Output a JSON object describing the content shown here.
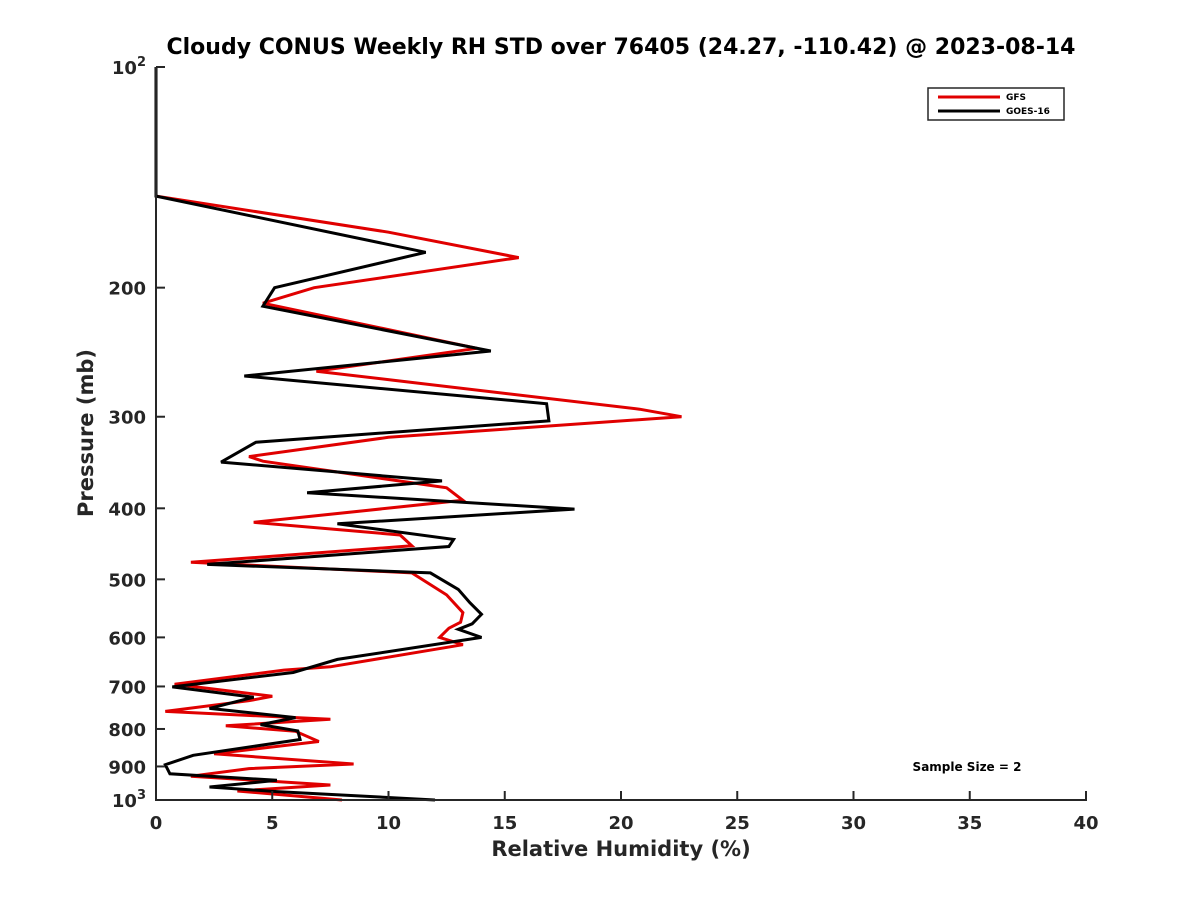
{
  "chart_data": {
    "type": "line",
    "title": "Cloudy CONUS Weekly RH STD over 76405 (24.27, -110.42) @ 2023-08-14",
    "xlabel": "Relative Humidity (%)",
    "ylabel": "Pressure (mb)",
    "xlim": [
      0,
      40
    ],
    "ylim": [
      1000,
      100
    ],
    "yscale": "log",
    "x_ticks": [
      0,
      5,
      10,
      15,
      20,
      25,
      30,
      35,
      40
    ],
    "x_tick_labels": [
      "0",
      "5",
      "10",
      "15",
      "20",
      "25",
      "30",
      "35",
      "40"
    ],
    "y_ticks": [
      {
        "value": 100,
        "base": "10",
        "exp": "2"
      },
      {
        "value": 200,
        "label": "200"
      },
      {
        "value": 300,
        "label": "300"
      },
      {
        "value": 400,
        "label": "400"
      },
      {
        "value": 500,
        "label": "500"
      },
      {
        "value": 600,
        "label": "600"
      },
      {
        "value": 700,
        "label": "700"
      },
      {
        "value": 800,
        "label": "800"
      },
      {
        "value": 900,
        "label": "900"
      },
      {
        "value": 1000,
        "base": "10",
        "exp": "3"
      }
    ],
    "legend_position": "top-right",
    "annotation": "Sample Size = 2",
    "series": [
      {
        "name": "GFS",
        "color": "#e00000",
        "points": [
          [
            0,
            100
          ],
          [
            0,
            150
          ],
          [
            10,
            168
          ],
          [
            15.6,
            182
          ],
          [
            6.8,
            200
          ],
          [
            4.6,
            210
          ],
          [
            13.8,
            242
          ],
          [
            6.9,
            260
          ],
          [
            20.8,
            293
          ],
          [
            22.6,
            300
          ],
          [
            10,
            320
          ],
          [
            4,
            340
          ],
          [
            4.6,
            345
          ],
          [
            12.5,
            375
          ],
          [
            13.2,
            390
          ],
          [
            4.2,
            418
          ],
          [
            10.5,
            435
          ],
          [
            11,
            450
          ],
          [
            1.5,
            474
          ],
          [
            11,
            490
          ],
          [
            12.5,
            525
          ],
          [
            13.2,
            555
          ],
          [
            13.1,
            572
          ],
          [
            12.6,
            583
          ],
          [
            12.2,
            600
          ],
          [
            13.2,
            614
          ],
          [
            7.5,
            658
          ],
          [
            5.5,
            665
          ],
          [
            0.8,
            695
          ],
          [
            5,
            722
          ],
          [
            4,
            732
          ],
          [
            0.4,
            757
          ],
          [
            7.5,
            776
          ],
          [
            3,
            792
          ],
          [
            6,
            806
          ],
          [
            7,
            832
          ],
          [
            2.5,
            865
          ],
          [
            8.5,
            893
          ],
          [
            4,
            906
          ],
          [
            1.5,
            928
          ],
          [
            7.5,
            954
          ],
          [
            3.5,
            972
          ],
          [
            8,
            1000
          ]
        ]
      },
      {
        "name": "GOES-16",
        "color": "#000000",
        "points": [
          [
            0,
            100
          ],
          [
            0,
            150
          ],
          [
            11.6,
            179
          ],
          [
            5.1,
            200
          ],
          [
            4.6,
            212
          ],
          [
            14.4,
            244
          ],
          [
            3.8,
            264
          ],
          [
            16.8,
            288
          ],
          [
            16.9,
            304
          ],
          [
            4.3,
            325
          ],
          [
            2.8,
            346
          ],
          [
            12.3,
            367
          ],
          [
            6.5,
            381
          ],
          [
            18,
            401
          ],
          [
            7.8,
            420
          ],
          [
            12.8,
            441
          ],
          [
            12.6,
            451
          ],
          [
            2.2,
            477
          ],
          [
            11.8,
            490
          ],
          [
            13,
            516
          ],
          [
            13.5,
            538
          ],
          [
            14,
            558
          ],
          [
            13.6,
            575
          ],
          [
            13,
            585
          ],
          [
            14,
            600
          ],
          [
            7.8,
            643
          ],
          [
            5.9,
            670
          ],
          [
            0.7,
            701
          ],
          [
            4.2,
            724
          ],
          [
            2.3,
            750
          ],
          [
            6,
            772
          ],
          [
            4.5,
            789
          ],
          [
            6.1,
            805
          ],
          [
            6.2,
            827
          ],
          [
            1.6,
            869
          ],
          [
            0.4,
            895
          ],
          [
            0.6,
            921
          ],
          [
            5.2,
            940
          ],
          [
            2.3,
            960
          ],
          [
            5.2,
            974
          ],
          [
            12,
            1000
          ]
        ]
      }
    ]
  }
}
